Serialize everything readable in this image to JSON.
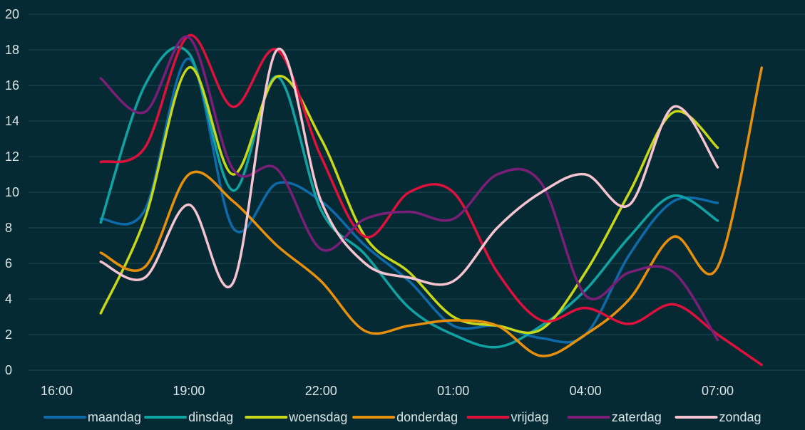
{
  "chart_data": {
    "type": "line",
    "title": "",
    "xlabel": "",
    "ylabel": "",
    "ylim": [
      0,
      20
    ],
    "y_ticks": [
      0,
      2,
      4,
      6,
      8,
      10,
      12,
      14,
      16,
      18,
      20
    ],
    "x_ticks": [
      "16:00",
      "19:00",
      "22:00",
      "01:00",
      "04:00",
      "07:00"
    ],
    "x": [
      "17:00",
      "18:00",
      "19:00",
      "20:00",
      "21:00",
      "22:00",
      "23:00",
      "00:00",
      "01:00",
      "02:00",
      "03:00",
      "04:00",
      "05:00",
      "06:00",
      "07:00",
      "08:00"
    ],
    "grid": true,
    "legend_position": "bottom",
    "series": [
      {
        "name": "maandag",
        "color": "#0e6aa8",
        "values": [
          8.5,
          9.0,
          17.5,
          8.0,
          10.5,
          9.5,
          7.0,
          5.0,
          2.5,
          2.5,
          1.8,
          2.0,
          6.5,
          9.5,
          9.4,
          null
        ]
      },
      {
        "name": "dinsdag",
        "color": "#10a3a3",
        "values": [
          8.3,
          16.0,
          17.8,
          10.1,
          16.5,
          9.0,
          6.5,
          3.5,
          2.0,
          1.3,
          2.5,
          4.5,
          7.5,
          9.8,
          8.4,
          null
        ]
      },
      {
        "name": "woensdag",
        "color": "#c8d818",
        "values": [
          3.2,
          8.5,
          17.0,
          11.0,
          16.5,
          13.0,
          7.5,
          5.5,
          3.0,
          2.5,
          2.3,
          5.5,
          10.0,
          14.5,
          12.5,
          null
        ]
      },
      {
        "name": "donderdag",
        "color": "#e8900c",
        "values": [
          6.6,
          5.8,
          11.0,
          9.5,
          7.0,
          5.0,
          2.2,
          2.5,
          2.8,
          2.5,
          0.8,
          2.0,
          4.0,
          7.5,
          5.8,
          17.0
        ]
      },
      {
        "name": "vrijdag",
        "color": "#e0103c",
        "values": [
          11.7,
          12.5,
          18.8,
          14.8,
          18.0,
          12.0,
          7.5,
          10.0,
          10.0,
          5.5,
          2.8,
          3.5,
          2.6,
          3.7,
          2.0,
          0.3
        ]
      },
      {
        "name": "zaterdag",
        "color": "#7a1e78",
        "values": [
          16.4,
          14.5,
          18.7,
          11.3,
          11.3,
          6.8,
          8.5,
          8.9,
          8.5,
          11.0,
          10.5,
          4.2,
          5.5,
          5.5,
          1.7,
          null
        ]
      },
      {
        "name": "zondag",
        "color": "#f6c4d0",
        "values": [
          6.1,
          5.2,
          9.3,
          4.9,
          18.0,
          9.5,
          6.0,
          5.2,
          5.0,
          8.0,
          10.0,
          11.0,
          9.3,
          14.8,
          11.4,
          null
        ]
      }
    ]
  }
}
